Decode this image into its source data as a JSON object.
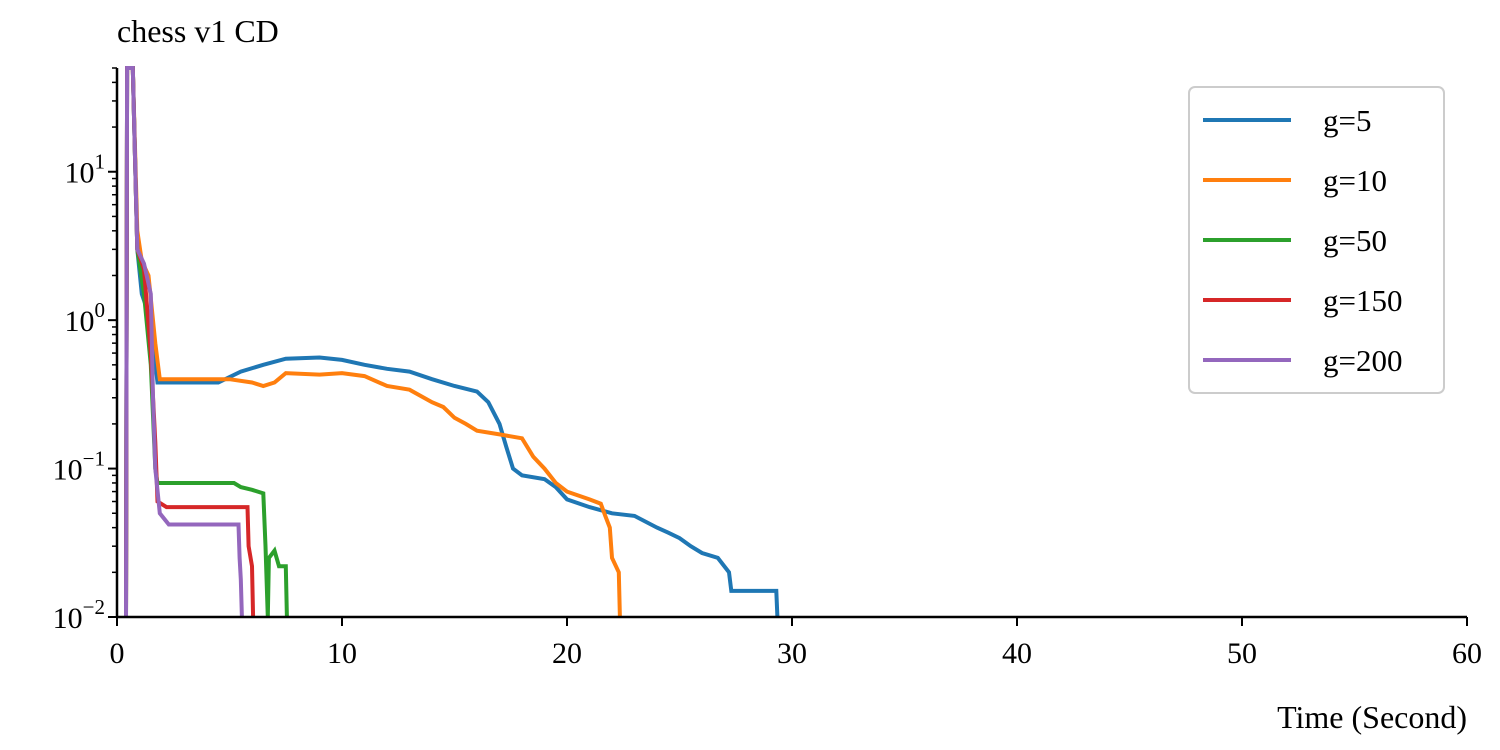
{
  "chart_data": {
    "type": "line",
    "title": "chess v1 CD",
    "xlabel": "Time (Second)",
    "ylabel": "",
    "xlim": [
      0,
      60
    ],
    "ylim": [
      0.01,
      50
    ],
    "yscale": "log",
    "grid": false,
    "legend_position": "top-right",
    "x_ticks": [
      0,
      10,
      20,
      30,
      40,
      50,
      60
    ],
    "x_tick_labels": [
      "0",
      "10",
      "20",
      "30",
      "40",
      "50",
      "60"
    ],
    "y_ticks": [
      0.01,
      0.1,
      1,
      10
    ],
    "y_tick_labels": [
      {
        "base": "10",
        "exp": "−2"
      },
      {
        "base": "10",
        "exp": "−1"
      },
      {
        "base": "10",
        "exp": "0"
      },
      {
        "base": "10",
        "exp": "1"
      }
    ],
    "series": [
      {
        "name": "g=5",
        "color": "#1f77b4",
        "points": [
          [
            0.4,
            0.01
          ],
          [
            0.45,
            50
          ],
          [
            0.7,
            50
          ],
          [
            0.9,
            3
          ],
          [
            1.1,
            1.5
          ],
          [
            1.5,
            1.0
          ],
          [
            1.8,
            0.38
          ],
          [
            4.5,
            0.38
          ],
          [
            5.5,
            0.45
          ],
          [
            6.5,
            0.5
          ],
          [
            7.5,
            0.55
          ],
          [
            9,
            0.56
          ],
          [
            10,
            0.54
          ],
          [
            11,
            0.5
          ],
          [
            12,
            0.47
          ],
          [
            13,
            0.45
          ],
          [
            14,
            0.4
          ],
          [
            15,
            0.36
          ],
          [
            16,
            0.33
          ],
          [
            16.5,
            0.28
          ],
          [
            17,
            0.2
          ],
          [
            17.3,
            0.14
          ],
          [
            17.6,
            0.1
          ],
          [
            18,
            0.09
          ],
          [
            19,
            0.085
          ],
          [
            19.5,
            0.075
          ],
          [
            20,
            0.062
          ],
          [
            21,
            0.055
          ],
          [
            22,
            0.05
          ],
          [
            23,
            0.048
          ],
          [
            24,
            0.04
          ],
          [
            24.5,
            0.037
          ],
          [
            25,
            0.034
          ],
          [
            25.5,
            0.03
          ],
          [
            26,
            0.027
          ],
          [
            26.7,
            0.025
          ],
          [
            27.2,
            0.02
          ],
          [
            27.3,
            0.015
          ],
          [
            29.3,
            0.015
          ],
          [
            29.35,
            0.01
          ]
        ]
      },
      {
        "name": "g=10",
        "color": "#ff7f0e",
        "points": [
          [
            0.4,
            0.01
          ],
          [
            0.45,
            50
          ],
          [
            0.7,
            50
          ],
          [
            0.9,
            4
          ],
          [
            1.1,
            2.5
          ],
          [
            1.4,
            2.0
          ],
          [
            1.7,
            0.7
          ],
          [
            1.9,
            0.4
          ],
          [
            5,
            0.4
          ],
          [
            6,
            0.38
          ],
          [
            6.5,
            0.36
          ],
          [
            7,
            0.38
          ],
          [
            7.5,
            0.44
          ],
          [
            9,
            0.43
          ],
          [
            10,
            0.44
          ],
          [
            11,
            0.42
          ],
          [
            12,
            0.36
          ],
          [
            13,
            0.34
          ],
          [
            14,
            0.28
          ],
          [
            14.5,
            0.26
          ],
          [
            15,
            0.22
          ],
          [
            15.5,
            0.2
          ],
          [
            16,
            0.18
          ],
          [
            17,
            0.17
          ],
          [
            18,
            0.16
          ],
          [
            18.5,
            0.12
          ],
          [
            19,
            0.1
          ],
          [
            19.5,
            0.08
          ],
          [
            20,
            0.07
          ],
          [
            21,
            0.062
          ],
          [
            21.5,
            0.058
          ],
          [
            21.7,
            0.048
          ],
          [
            21.9,
            0.04
          ],
          [
            22,
            0.025
          ],
          [
            22.3,
            0.02
          ],
          [
            22.35,
            0.01
          ]
        ]
      },
      {
        "name": "g=50",
        "color": "#2ca02c",
        "points": [
          [
            0.4,
            0.01
          ],
          [
            0.45,
            50
          ],
          [
            0.7,
            50
          ],
          [
            0.9,
            3
          ],
          [
            1.2,
            1.5
          ],
          [
            1.5,
            0.5
          ],
          [
            1.7,
            0.1
          ],
          [
            1.8,
            0.08
          ],
          [
            5.2,
            0.08
          ],
          [
            5.5,
            0.075
          ],
          [
            6.0,
            0.072
          ],
          [
            6.5,
            0.068
          ],
          [
            6.6,
            0.03
          ],
          [
            6.7,
            0.01
          ],
          [
            6.75,
            0.025
          ],
          [
            7.0,
            0.028
          ],
          [
            7.2,
            0.022
          ],
          [
            7.5,
            0.022
          ],
          [
            7.55,
            0.01
          ]
        ]
      },
      {
        "name": "g=150",
        "color": "#d62728",
        "points": [
          [
            0.4,
            0.01
          ],
          [
            0.45,
            50
          ],
          [
            0.7,
            50
          ],
          [
            0.9,
            3
          ],
          [
            1.2,
            2.2
          ],
          [
            1.5,
            0.6
          ],
          [
            1.7,
            0.15
          ],
          [
            1.8,
            0.06
          ],
          [
            2.2,
            0.055
          ],
          [
            5.8,
            0.055
          ],
          [
            5.85,
            0.03
          ],
          [
            6.0,
            0.022
          ],
          [
            6.05,
            0.01
          ]
        ]
      },
      {
        "name": "g=200",
        "color": "#9467bd",
        "points": [
          [
            0.4,
            0.01
          ],
          [
            0.45,
            50
          ],
          [
            0.7,
            50
          ],
          [
            0.9,
            3
          ],
          [
            1.2,
            2.4
          ],
          [
            1.5,
            1.5
          ],
          [
            1.6,
            0.3
          ],
          [
            1.7,
            0.1
          ],
          [
            1.9,
            0.05
          ],
          [
            2.3,
            0.042
          ],
          [
            5.4,
            0.042
          ],
          [
            5.45,
            0.025
          ],
          [
            5.5,
            0.018
          ],
          [
            5.55,
            0.01
          ]
        ]
      }
    ]
  }
}
